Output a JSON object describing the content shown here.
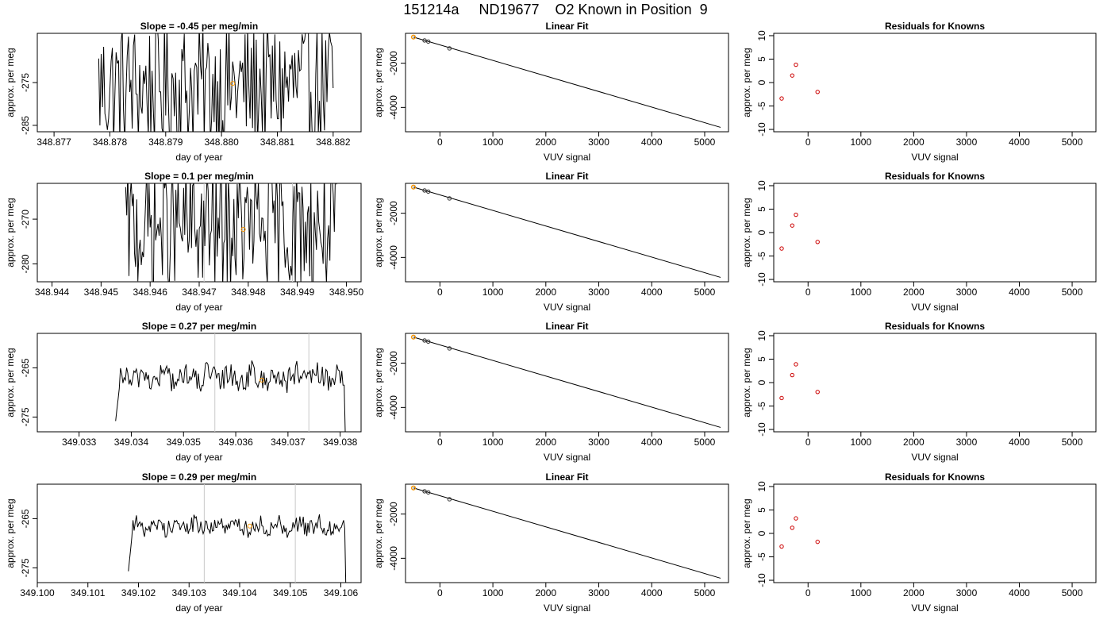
{
  "main_title": "151214a     ND19677    O2 Known in Position  9",
  "colors": {
    "line": "#000000",
    "residual_point": "#cc0000",
    "highlight_point": "#ff9900",
    "vertical_marker": "#c8c8c8"
  },
  "chart_data": [
    {
      "panel": "row1-timeseries",
      "type": "line",
      "title": "Slope =  -0.45  per meg/min",
      "xlabel": "day of year",
      "ylabel": "approx. per meg",
      "xlim": [
        348.8767,
        348.8825
      ],
      "ylim": [
        -286.5,
        -263.5
      ],
      "xticks": [
        348.877,
        348.878,
        348.879,
        348.88,
        348.881,
        348.882
      ],
      "xtick_labels": [
        "348.877",
        "348.878",
        "348.879",
        "348.880",
        "348.881",
        "348.882"
      ],
      "yticks": [
        -275,
        -285
      ],
      "ytick_labels": [
        "-275",
        "-285"
      ],
      "data_x_range": [
        348.8778,
        348.882
      ],
      "center": -276,
      "amplitude": 11,
      "noise_level": "high",
      "vertical_markers": [],
      "highlight_point": {
        "x": 348.8802,
        "y": -275.2
      }
    },
    {
      "panel": "row1-fit",
      "type": "line+scatter",
      "title": "Linear Fit",
      "xlabel": "VUV signal",
      "ylabel": "approx. per meg",
      "xlim": [
        -650,
        5450
      ],
      "ylim": [
        -5100,
        -650
      ],
      "xticks": [
        0,
        1000,
        2000,
        3000,
        4000,
        5000
      ],
      "xtick_labels": [
        "0",
        "1000",
        "2000",
        "3000",
        "4000",
        "5000"
      ],
      "yticks": [
        -2000,
        -4000
      ],
      "ytick_labels": [
        "-2000",
        "-4000"
      ],
      "fit_line": {
        "x": [
          -500,
          5300
        ],
        "y": [
          -820,
          -4900
        ]
      },
      "points": [
        {
          "x": -500,
          "y": -820
        },
        {
          "x": -290,
          "y": -970
        },
        {
          "x": -220,
          "y": -1020
        },
        {
          "x": 180,
          "y": -1330
        }
      ],
      "highlight_point": {
        "x": -500,
        "y": -820
      }
    },
    {
      "panel": "row1-residuals",
      "type": "scatter",
      "title": "Residuals for Knowns",
      "xlabel": "VUV signal",
      "ylabel": "approx. per meg",
      "xlim": [
        -650,
        5450
      ],
      "ylim": [
        -10.5,
        10.5
      ],
      "xticks": [
        0,
        1000,
        2000,
        3000,
        4000,
        5000
      ],
      "xtick_labels": [
        "0",
        "1000",
        "2000",
        "3000",
        "4000",
        "5000"
      ],
      "yticks": [
        10,
        5,
        0,
        -5,
        -10
      ],
      "ytick_labels": [
        "10",
        "5",
        "0",
        "-5",
        "-10"
      ],
      "points": [
        {
          "x": -500,
          "y": -3.4
        },
        {
          "x": -300,
          "y": 1.5
        },
        {
          "x": -230,
          "y": 3.8
        },
        {
          "x": 180,
          "y": -2.0
        }
      ]
    },
    {
      "panel": "row2-timeseries",
      "type": "line",
      "title": "Slope =  0.1  per meg/min",
      "xlabel": "day of year",
      "ylabel": "approx. per meg",
      "xlim": [
        348.9437,
        348.9503
      ],
      "ylim": [
        -284,
        -262
      ],
      "xticks": [
        348.944,
        348.945,
        348.946,
        348.947,
        348.948,
        348.949,
        348.95
      ],
      "xtick_labels": [
        "348.944",
        "348.945",
        "348.946",
        "348.947",
        "348.948",
        "348.949",
        "348.950"
      ],
      "yticks": [
        -270,
        -280
      ],
      "ytick_labels": [
        "-270",
        "-280"
      ],
      "data_x_range": [
        348.9455,
        348.9498
      ],
      "center": -272,
      "amplitude": 10,
      "noise_level": "high",
      "vertical_markers": [
        348.9471,
        348.9489
      ],
      "highlight_point": {
        "x": 348.9479,
        "y": -272.3
      }
    },
    {
      "panel": "row2-fit",
      "type": "line+scatter",
      "title": "Linear Fit",
      "xlabel": "VUV signal",
      "ylabel": "approx. per meg",
      "xlim": [
        -650,
        5450
      ],
      "ylim": [
        -5100,
        -650
      ],
      "xticks": [
        0,
        1000,
        2000,
        3000,
        4000,
        5000
      ],
      "xtick_labels": [
        "0",
        "1000",
        "2000",
        "3000",
        "4000",
        "5000"
      ],
      "yticks": [
        -2000,
        -4000
      ],
      "ytick_labels": [
        "-2000",
        "-4000"
      ],
      "fit_line": {
        "x": [
          -500,
          5300
        ],
        "y": [
          -820,
          -4900
        ]
      },
      "points": [
        {
          "x": -500,
          "y": -820
        },
        {
          "x": -290,
          "y": -970
        },
        {
          "x": -220,
          "y": -1020
        },
        {
          "x": 180,
          "y": -1330
        }
      ],
      "highlight_point": {
        "x": -500,
        "y": -820
      }
    },
    {
      "panel": "row2-residuals",
      "type": "scatter",
      "title": "Residuals for Knowns",
      "xlabel": "VUV signal",
      "ylabel": "approx. per meg",
      "xlim": [
        -650,
        5450
      ],
      "ylim": [
        -10.5,
        10.5
      ],
      "xticks": [
        0,
        1000,
        2000,
        3000,
        4000,
        5000
      ],
      "xtick_labels": [
        "0",
        "1000",
        "2000",
        "3000",
        "4000",
        "5000"
      ],
      "yticks": [
        10,
        5,
        0,
        -5,
        -10
      ],
      "ytick_labels": [
        "10",
        "5",
        "0",
        "-5",
        "-10"
      ],
      "points": [
        {
          "x": -500,
          "y": -3.4
        },
        {
          "x": -300,
          "y": 1.5
        },
        {
          "x": -230,
          "y": 3.8
        },
        {
          "x": 180,
          "y": -2.0
        }
      ]
    },
    {
      "panel": "row3-timeseries",
      "type": "line",
      "title": "Slope =  0.27  per meg/min",
      "xlabel": "day of year",
      "ylabel": "approx. per meg",
      "xlim": [
        349.0322,
        349.0384
      ],
      "ylim": [
        -278,
        -258
      ],
      "xticks": [
        349.033,
        349.034,
        349.035,
        349.036,
        349.037,
        349.038
      ],
      "xtick_labels": [
        "349.033",
        "349.034",
        "349.035",
        "349.036",
        "349.037",
        "349.038"
      ],
      "yticks": [
        -265,
        -275
      ],
      "ytick_labels": [
        "-265",
        "-275"
      ],
      "data_x_range": [
        349.0337,
        349.0381
      ],
      "center": -267,
      "amplitude": 2.5,
      "noise_level": "medium",
      "vertical_markers": [
        349.0356,
        349.0374
      ],
      "highlight_point": {
        "x": 349.0365,
        "y": -267.5
      }
    },
    {
      "panel": "row3-fit",
      "type": "line+scatter",
      "title": "Linear Fit",
      "xlabel": "VUV signal",
      "ylabel": "approx. per meg",
      "xlim": [
        -650,
        5450
      ],
      "ylim": [
        -5100,
        -650
      ],
      "xticks": [
        0,
        1000,
        2000,
        3000,
        4000,
        5000
      ],
      "xtick_labels": [
        "0",
        "1000",
        "2000",
        "3000",
        "4000",
        "5000"
      ],
      "yticks": [
        -2000,
        -4000
      ],
      "ytick_labels": [
        "-2000",
        "-4000"
      ],
      "fit_line": {
        "x": [
          -500,
          5300
        ],
        "y": [
          -820,
          -4900
        ]
      },
      "points": [
        {
          "x": -500,
          "y": -820
        },
        {
          "x": -290,
          "y": -970
        },
        {
          "x": -220,
          "y": -1020
        },
        {
          "x": 180,
          "y": -1330
        }
      ],
      "highlight_point": {
        "x": -500,
        "y": -820
      }
    },
    {
      "panel": "row3-residuals",
      "type": "scatter",
      "title": "Residuals for Knowns",
      "xlabel": "VUV signal",
      "ylabel": "approx. per meg",
      "xlim": [
        -650,
        5450
      ],
      "ylim": [
        -10.5,
        10.5
      ],
      "xticks": [
        0,
        1000,
        2000,
        3000,
        4000,
        5000
      ],
      "xtick_labels": [
        "0",
        "1000",
        "2000",
        "3000",
        "4000",
        "5000"
      ],
      "yticks": [
        10,
        5,
        0,
        -5,
        -10
      ],
      "ytick_labels": [
        "10",
        "5",
        "0",
        "-5",
        "-10"
      ],
      "points": [
        {
          "x": -500,
          "y": -3.3
        },
        {
          "x": -300,
          "y": 1.6
        },
        {
          "x": -230,
          "y": 3.9
        },
        {
          "x": 180,
          "y": -2.0
        }
      ]
    },
    {
      "panel": "row4-timeseries",
      "type": "line",
      "title": "Slope =  0.29  per meg/min",
      "xlabel": "day of year",
      "ylabel": "approx. per meg",
      "xlim": [
        349.1,
        349.1064
      ],
      "ylim": [
        -278,
        -258
      ],
      "xticks": [
        349.1,
        349.101,
        349.102,
        349.103,
        349.104,
        349.105,
        349.106
      ],
      "xtick_labels": [
        "349.100",
        "349.101",
        "349.102",
        "349.103",
        "349.104",
        "349.105",
        "349.106"
      ],
      "yticks": [
        -265,
        -275
      ],
      "ytick_labels": [
        "-265",
        "-275"
      ],
      "data_x_range": [
        349.1018,
        349.1061
      ],
      "center": -266.5,
      "amplitude": 1.8,
      "noise_level": "low",
      "vertical_markers": [
        349.1033,
        349.1051
      ],
      "highlight_point": {
        "x": 349.1042,
        "y": -266.5
      }
    },
    {
      "panel": "row4-fit",
      "type": "line+scatter",
      "title": "Linear Fit",
      "xlabel": "VUV signal",
      "ylabel": "approx. per meg",
      "xlim": [
        -650,
        5450
      ],
      "ylim": [
        -5100,
        -650
      ],
      "xticks": [
        0,
        1000,
        2000,
        3000,
        4000,
        5000
      ],
      "xtick_labels": [
        "0",
        "1000",
        "2000",
        "3000",
        "4000",
        "5000"
      ],
      "yticks": [
        -2000,
        -4000
      ],
      "ytick_labels": [
        "-2000",
        "-4000"
      ],
      "fit_line": {
        "x": [
          -500,
          5300
        ],
        "y": [
          -820,
          -4900
        ]
      },
      "points": [
        {
          "x": -500,
          "y": -820
        },
        {
          "x": -290,
          "y": -970
        },
        {
          "x": -220,
          "y": -1020
        },
        {
          "x": 180,
          "y": -1330
        }
      ],
      "highlight_point": {
        "x": -500,
        "y": -820
      }
    },
    {
      "panel": "row4-residuals",
      "type": "scatter",
      "title": "Residuals for Knowns",
      "xlabel": "VUV signal",
      "ylabel": "approx. per meg",
      "xlim": [
        -650,
        5450
      ],
      "ylim": [
        -10.5,
        10.5
      ],
      "xticks": [
        0,
        1000,
        2000,
        3000,
        4000,
        5000
      ],
      "xtick_labels": [
        "0",
        "1000",
        "2000",
        "3000",
        "4000",
        "5000"
      ],
      "yticks": [
        10,
        5,
        0,
        -5,
        -10
      ],
      "ytick_labels": [
        "10",
        "5",
        "0",
        "-5",
        "-10"
      ],
      "points": [
        {
          "x": -500,
          "y": -2.8
        },
        {
          "x": -300,
          "y": 1.2
        },
        {
          "x": -230,
          "y": 3.2
        },
        {
          "x": 180,
          "y": -1.8
        }
      ]
    }
  ]
}
